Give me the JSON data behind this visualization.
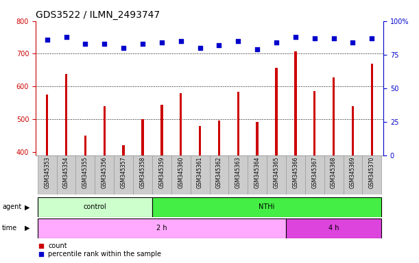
{
  "title": "GDS3522 / ILMN_2493747",
  "samples": [
    "GSM345353",
    "GSM345354",
    "GSM345355",
    "GSM345356",
    "GSM345357",
    "GSM345358",
    "GSM345359",
    "GSM345360",
    "GSM345361",
    "GSM345362",
    "GSM345363",
    "GSM345364",
    "GSM345365",
    "GSM345366",
    "GSM345367",
    "GSM345368",
    "GSM345369",
    "GSM345370"
  ],
  "counts": [
    575,
    638,
    450,
    540,
    420,
    500,
    545,
    580,
    480,
    495,
    583,
    492,
    657,
    707,
    585,
    628,
    540,
    670
  ],
  "percentile_ranks": [
    86,
    88,
    83,
    83,
    80,
    83,
    84,
    85,
    80,
    82,
    85,
    79,
    84,
    88,
    87,
    87,
    84,
    87
  ],
  "bar_color": "#cc0000",
  "dot_color": "#0000cc",
  "ylim_left": [
    390,
    800
  ],
  "ylim_right": [
    0,
    100
  ],
  "yticks_left": [
    400,
    500,
    600,
    700,
    800
  ],
  "yticks_right": [
    0,
    25,
    50,
    75,
    100
  ],
  "grid_values": [
    500,
    600,
    700
  ],
  "agent_groups": [
    {
      "label": "control",
      "start": 0,
      "end": 5,
      "color": "#ccffcc"
    },
    {
      "label": "NTHi",
      "start": 6,
      "end": 17,
      "color": "#44ee44"
    }
  ],
  "time_groups": [
    {
      "label": "2 h",
      "start": 0,
      "end": 12,
      "color": "#ffaaff"
    },
    {
      "label": "4 h",
      "start": 13,
      "end": 17,
      "color": "#dd44dd"
    }
  ],
  "xlabel_agent": "agent",
  "xlabel_time": "time",
  "legend_count": "count",
  "legend_percentile": "percentile rank within the sample",
  "bar_width": 0.12,
  "title_fontsize": 10,
  "fig_bg": "#ffffff",
  "axes_bg": "#ffffff",
  "tick_bg": "#cccccc",
  "tick_border": "#999999"
}
